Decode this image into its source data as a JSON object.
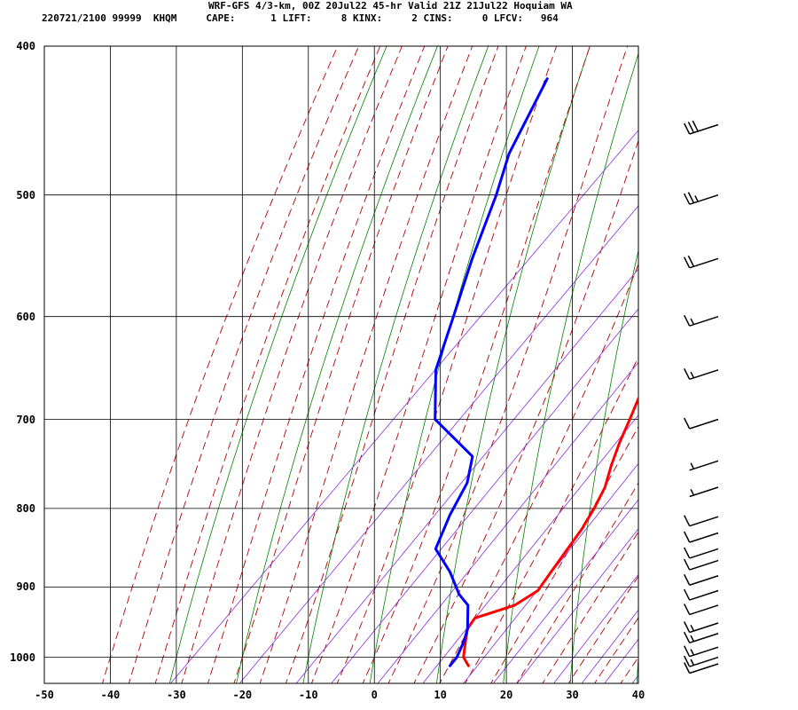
{
  "header": {
    "line1": "WRF-GFS 4/3-km, 00Z 20Jul22 45-hr Valid 21Z 21Jul22 Hoquiam WA",
    "line2": "220721/2100 99999  KHQM     CAPE:      1 LIFT:     8 KINX:     2 CINS:     0 LFCV:   964"
  },
  "colors": {
    "temperature": "#ff0000",
    "dewpoint": "#0000ff",
    "dry_adiabat": "#008000",
    "moist_adiabat": "#b00000",
    "mixing_ratio": "#8a2be2",
    "grid": "#000000"
  },
  "chart_data": {
    "type": "line",
    "diagram": "skew-T log-P",
    "xlim": [
      -50,
      40
    ],
    "ylim": [
      1040,
      400
    ],
    "y_scale": "log",
    "grid": true,
    "x_ticks": [
      -50,
      -40,
      -30,
      -20,
      -10,
      0,
      10,
      20,
      30,
      40
    ],
    "y_ticks": [
      400,
      500,
      600,
      700,
      800,
      900,
      1000
    ],
    "series": [
      {
        "key": "temperature",
        "points": [
          {
            "p": 1013,
            "t": 15.5
          },
          {
            "p": 1000,
            "t": 13.5
          },
          {
            "p": 975,
            "t": 11.4
          },
          {
            "p": 958,
            "t": 10.0
          },
          {
            "p": 943,
            "t": 9.6
          },
          {
            "p": 925,
            "t": 13.8
          },
          {
            "p": 905,
            "t": 15.2
          },
          {
            "p": 880,
            "t": 14.5
          },
          {
            "p": 850,
            "t": 13.7
          },
          {
            "p": 825,
            "t": 13.0
          },
          {
            "p": 800,
            "t": 11.9
          },
          {
            "p": 775,
            "t": 10.5
          },
          {
            "p": 750,
            "t": 8.3
          },
          {
            "p": 725,
            "t": 6.3
          },
          {
            "p": 700,
            "t": 4.5
          },
          {
            "p": 650,
            "t": 0.5
          },
          {
            "p": 600,
            "t": -4.0
          },
          {
            "p": 550,
            "t": -8.0
          },
          {
            "p": 500,
            "t": -12.5
          },
          {
            "p": 470,
            "t": -15.5
          },
          {
            "p": 450,
            "t": -17.5
          },
          {
            "p": 420,
            "t": -20.5
          }
        ]
      },
      {
        "key": "dewpoint",
        "points": [
          {
            "p": 1013,
            "t": 12.7
          },
          {
            "p": 1000,
            "t": 12.5
          },
          {
            "p": 975,
            "t": 11.2
          },
          {
            "p": 958,
            "t": 10.0
          },
          {
            "p": 925,
            "t": 6.7
          },
          {
            "p": 910,
            "t": 3.8
          },
          {
            "p": 880,
            "t": -0.8
          },
          {
            "p": 850,
            "t": -6.3
          },
          {
            "p": 808,
            "t": -9.0
          },
          {
            "p": 770,
            "t": -11.0
          },
          {
            "p": 740,
            "t": -14.0
          },
          {
            "p": 700,
            "t": -25.0
          },
          {
            "p": 650,
            "t": -32.0
          },
          {
            "p": 600,
            "t": -37.0
          },
          {
            "p": 550,
            "t": -42.5
          },
          {
            "p": 500,
            "t": -48.0
          },
          {
            "p": 470,
            "t": -52.0
          },
          {
            "p": 420,
            "t": -57.0
          }
        ]
      }
    ],
    "wind_barbs": [
      {
        "p": 1010,
        "speed_kt": 10
      },
      {
        "p": 1000,
        "speed_kt": 15
      },
      {
        "p": 985,
        "speed_kt": 15
      },
      {
        "p": 965,
        "speed_kt": 15
      },
      {
        "p": 950,
        "speed_kt": 15
      },
      {
        "p": 925,
        "speed_kt": 10
      },
      {
        "p": 905,
        "speed_kt": 10
      },
      {
        "p": 885,
        "speed_kt": 10
      },
      {
        "p": 865,
        "speed_kt": 10
      },
      {
        "p": 850,
        "speed_kt": 10
      },
      {
        "p": 830,
        "speed_kt": 10
      },
      {
        "p": 810,
        "speed_kt": 10
      },
      {
        "p": 775,
        "speed_kt": 5
      },
      {
        "p": 745,
        "speed_kt": 5
      },
      {
        "p": 700,
        "speed_kt": 10
      },
      {
        "p": 650,
        "speed_kt": 15
      },
      {
        "p": 600,
        "speed_kt": 15
      },
      {
        "p": 550,
        "speed_kt": 20
      },
      {
        "p": 500,
        "speed_kt": 25
      },
      {
        "p": 450,
        "speed_kt": 30
      }
    ]
  }
}
